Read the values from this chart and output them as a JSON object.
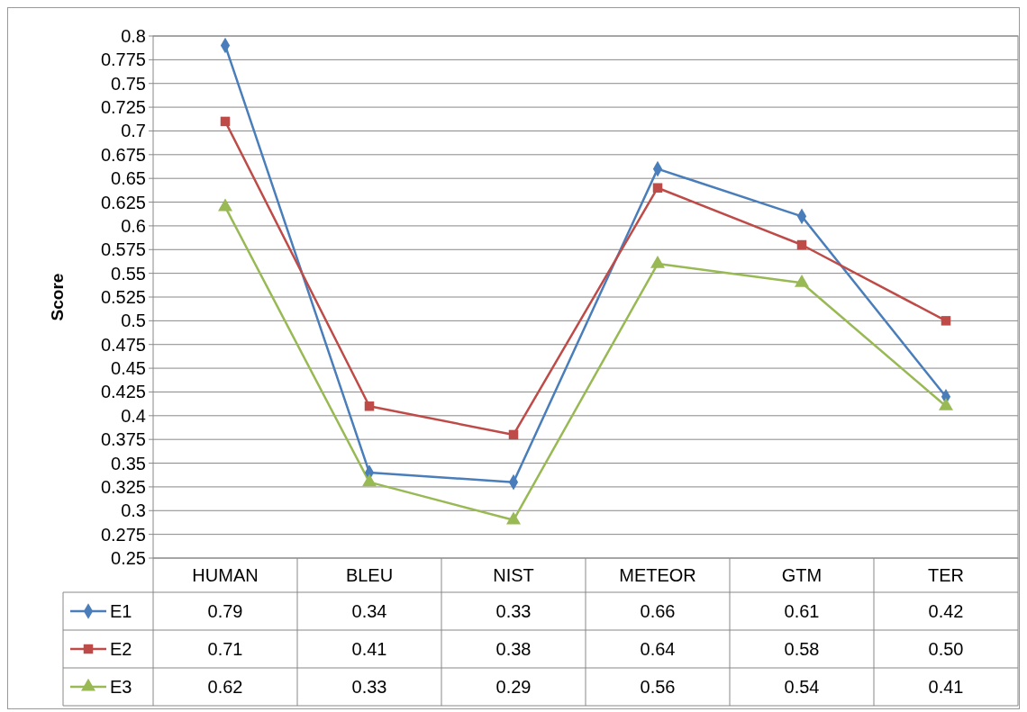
{
  "chart_data": {
    "type": "line",
    "ylabel": "Score",
    "categories": [
      "HUMAN",
      "BLEU",
      "NIST",
      "METEOR",
      "GTM",
      "TER"
    ],
    "series": [
      {
        "name": "E1",
        "color": "#4a7ebb",
        "marker": "diamond",
        "values": [
          0.79,
          0.34,
          0.33,
          0.66,
          0.61,
          0.42
        ],
        "value_labels": [
          "0.79",
          "0.34",
          "0.33",
          "0.66",
          "0.61",
          "0.42"
        ]
      },
      {
        "name": "E2",
        "color": "#be4b48",
        "marker": "square",
        "values": [
          0.71,
          0.41,
          0.38,
          0.64,
          0.58,
          0.5
        ],
        "value_labels": [
          "0.71",
          "0.41",
          "0.38",
          "0.64",
          "0.58",
          "0.50"
        ]
      },
      {
        "name": "E3",
        "color": "#98b954",
        "marker": "triangle",
        "values": [
          0.62,
          0.33,
          0.29,
          0.56,
          0.54,
          0.41
        ],
        "value_labels": [
          "0.62",
          "0.33",
          "0.29",
          "0.56",
          "0.54",
          "0.41"
        ]
      }
    ],
    "ylim": [
      0.25,
      0.8
    ],
    "yticks": [
      0.25,
      0.275,
      0.3,
      0.325,
      0.35,
      0.375,
      0.4,
      0.425,
      0.45,
      0.475,
      0.5,
      0.525,
      0.55,
      0.575,
      0.6,
      0.625,
      0.65,
      0.675,
      0.7,
      0.725,
      0.75,
      0.775,
      0.8
    ],
    "grid": "y",
    "legend": "bottom"
  }
}
